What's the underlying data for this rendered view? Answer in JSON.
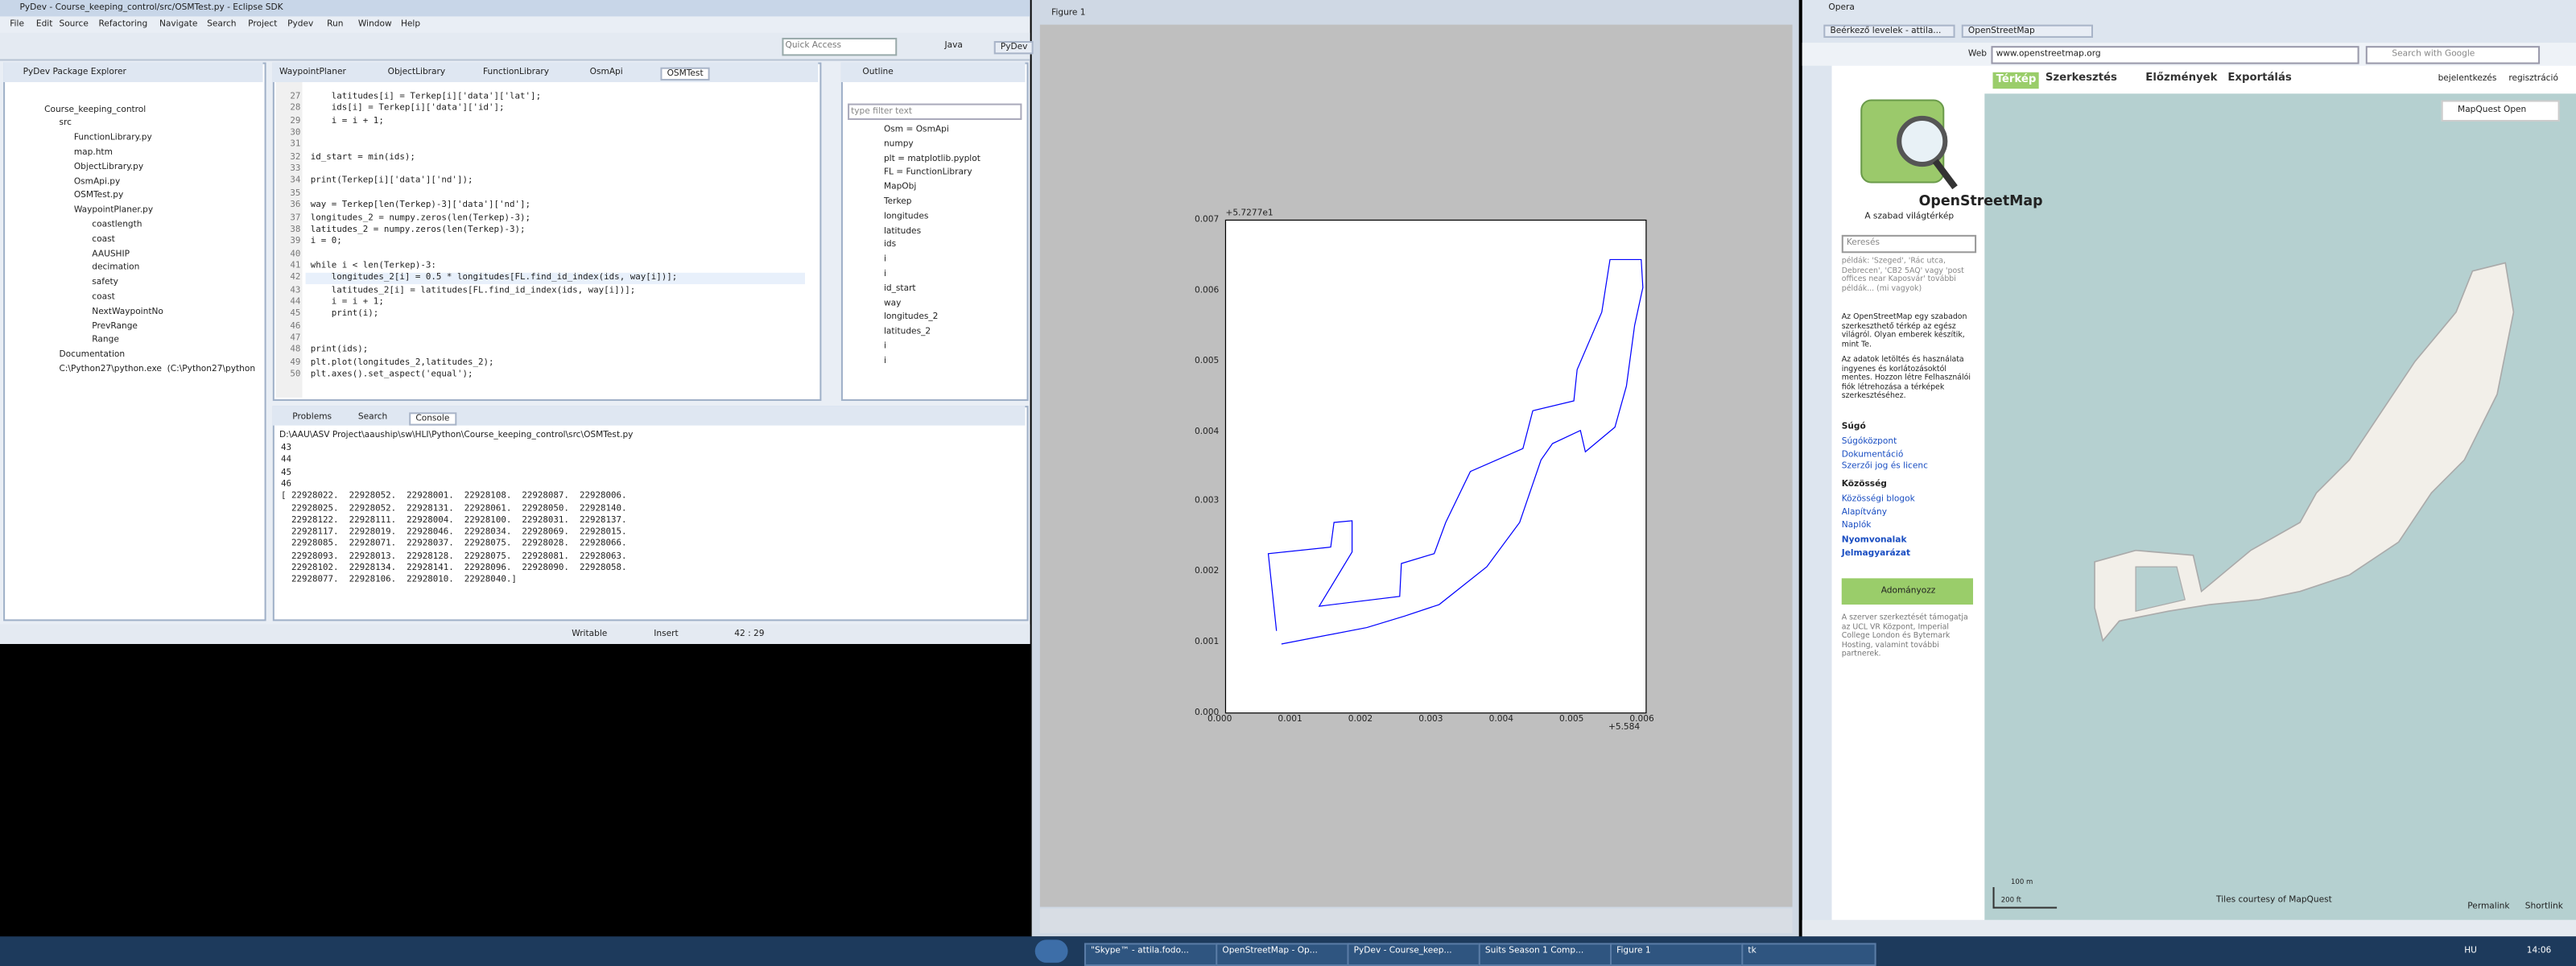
{
  "eclipse": {
    "title": "PyDev - Course_keeping_control/src/OSMTest.py - Eclipse SDK",
    "menu": [
      "File",
      "Edit",
      "Source",
      "Refactoring",
      "Navigate",
      "Search",
      "Project",
      "Pydev",
      "Run",
      "Window",
      "Help"
    ],
    "quick_access": "Quick Access",
    "perspectives": [
      "Java",
      "PyDev"
    ],
    "package_explorer": {
      "title": "PyDev Package Explorer",
      "items": [
        "Course_keeping_control",
        "src",
        "FunctionLibrary.py",
        "map.htm",
        "ObjectLibrary.py",
        "OsmApi.py",
        "OSMTest.py",
        "WaypointPlaner.py",
        "coastlength",
        "coast",
        "AAUSHIP",
        "decimation",
        "safety",
        "coast",
        "NextWaypointNo",
        "PrevRange",
        "Range",
        "Documentation",
        "C:\\Python27\\python.exe  (C:\\Python27\\python"
      ]
    },
    "editor_tabs": [
      "WaypointPlaner",
      "ObjectLibrary",
      "FunctionLibrary",
      "OsmApi",
      "OSMTest"
    ],
    "code": [
      {
        "number": 27,
        "code": "    latitudes[i] = Terkep[i]['data']['lat'];"
      },
      {
        "number": 28,
        "code": "    ids[i] = Terkep[i]['data']['id'];"
      },
      {
        "number": 29,
        "code": "    i = i + 1;"
      },
      {
        "number": 30,
        "code": ""
      },
      {
        "number": 31,
        "code": ""
      },
      {
        "number": 32,
        "code": "id_start = min(ids);"
      },
      {
        "number": 33,
        "code": ""
      },
      {
        "number": 34,
        "code": "print(Terkep[i]['data']['nd']);"
      },
      {
        "number": 35,
        "code": ""
      },
      {
        "number": 36,
        "code": "way = Terkep[len(Terkep)-3]['data']['nd'];"
      },
      {
        "number": 37,
        "code": "longitudes_2 = numpy.zeros(len(Terkep)-3);"
      },
      {
        "number": 38,
        "code": "latitudes_2 = numpy.zeros(len(Terkep)-3);"
      },
      {
        "number": 39,
        "code": "i = 0;"
      },
      {
        "number": 40,
        "code": ""
      },
      {
        "number": 41,
        "code": "while i < len(Terkep)-3:"
      },
      {
        "number": 42,
        "code": "    longitudes_2[i] = 0.5 * longitudes[FL.find_id_index(ids, way[i])];"
      },
      {
        "number": 43,
        "code": "    latitudes_2[i] = latitudes[FL.find_id_index(ids, way[i])];"
      },
      {
        "number": 44,
        "code": "    i = i + 1;"
      },
      {
        "number": 45,
        "code": "    print(i);"
      },
      {
        "number": 46,
        "code": ""
      },
      {
        "number": 47,
        "code": ""
      },
      {
        "number": 48,
        "code": "print(ids);"
      },
      {
        "number": 49,
        "code": "plt.plot(longitudes_2,latitudes_2);"
      },
      {
        "number": 50,
        "code": "plt.axes().set_aspect('equal');"
      }
    ],
    "outline": {
      "title": "Outline",
      "filter": "type filter text",
      "items": [
        "Osm = OsmApi",
        "numpy",
        "plt = matplotlib.pyplot",
        "FL = FunctionLibrary",
        "MapObj",
        "Terkep",
        "longitudes",
        "latitudes",
        "ids",
        "i",
        "i",
        "id_start",
        "way",
        "longitudes_2",
        "latitudes_2",
        "i",
        "i"
      ]
    },
    "bottom_tabs": [
      "Problems",
      "Search",
      "Console"
    ],
    "console_path": "D:\\AAU\\ASV Project\\aauship\\sw\\HLI\\Python\\Course_keeping_control\\src\\OSMTest.py",
    "console_lines": [
      "43",
      "44",
      "45",
      "46",
      "[ 22928022.  22928052.  22928001.  22928108.  22928087.  22928006.",
      "  22928025.  22928052.  22928131.  22928061.  22928050.  22928140.",
      "  22928122.  22928111.  22928004.  22928100.  22928031.  22928137.",
      "  22928117.  22928019.  22928046.  22928034.  22928069.  22928015.",
      "  22928085.  22928071.  22928037.  22928075.  22928028.  22928066.",
      "  22928093.  22928013.  22928128.  22928075.  22928081.  22928063.",
      "  22928102.  22928134.  22928141.  22928096.  22928090.  22928058.",
      "  22928077.  22928106.  22928010.  22928040.]"
    ],
    "status": [
      "Writable",
      "Insert",
      "42 : 29"
    ]
  },
  "figure": {
    "title": "Figure 1",
    "y_offset": "+5.7277e1",
    "x_offset": "+5.584",
    "yticks": [
      "0.000",
      "0.001",
      "0.002",
      "0.003",
      "0.004",
      "0.005",
      "0.006",
      "0.007"
    ],
    "xticks": [
      "0.000",
      "0.001",
      "0.002",
      "0.003",
      "0.004",
      "0.005",
      "0.006"
    ]
  },
  "browser": {
    "title": "Opera",
    "tabs": [
      "Beérkező levelek - attila...",
      "OpenStreetMap"
    ],
    "web_label": "Web",
    "address": "www.openstreetmap.org",
    "search": "Search with Google",
    "osm": {
      "nav": [
        "Térkép",
        "Szerkesztés",
        "Előzmények",
        "Exportálás"
      ],
      "login": "bejelentkezés",
      "register": "regisztráció",
      "logo": "OpenStreetMap",
      "tagline": "A szabad világtérkép",
      "search_placeholder": "Keresés",
      "search_hint": "példák: 'Szeged', 'Rác utca, Debrecen', 'CB2 5AQ' vagy 'post offices near Kaposvár' további példák... (mi vagyok)",
      "intro": "Az OpenStreetMap egy szabadon szerkeszthető térkép az egész világról. Olyan emberek készítik, mint Te.",
      "data_text": "Az adatok letöltés és használata ingyenes és korlátozásoktól mentes. Hozzon létre Felhasználói fiók létrehozása a térképek szerkesztéséhez.",
      "help_heading": "Súgó",
      "help_links": [
        "Súgóközpont",
        "Dokumentáció",
        "Szerzői jog és licenc"
      ],
      "community_heading": "Közösség",
      "community_links": [
        "Közösségi blogok",
        "Alapítvány",
        "Naplók",
        "Nyomvonalak",
        "Jelmagyarázat"
      ],
      "donate": "Adományozz",
      "hosting": "A szerver szerkeztését támogatja az UCL VR Központ, Imperial College London és Bytemark Hosting, valamint további partnerek.",
      "layer": "MapQuest Open",
      "scale": [
        "100 m",
        "200 ft"
      ],
      "tiles": "Tiles courtesy of MapQuest",
      "permalink": "Permalink",
      "shortlink": "Shortlink"
    }
  },
  "taskbar": {
    "items": [
      "\"Skype™ - attila.fodo...",
      "OpenStreetMap - Op...",
      "PyDev - Course_keep...",
      "Suits Season 1 Comp...",
      "Figure 1",
      "tk"
    ],
    "language": "HU",
    "clock": "14:06"
  }
}
